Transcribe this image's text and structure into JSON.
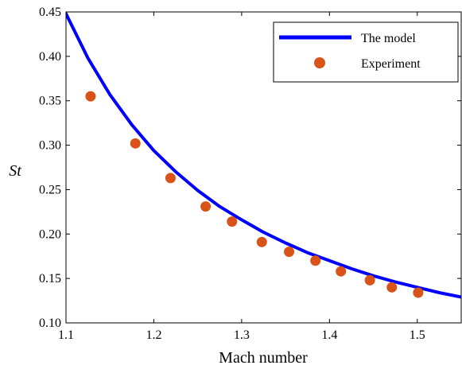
{
  "chart_data": {
    "type": "line",
    "title": "",
    "xlabel": "Mach number",
    "ylabel": "St",
    "xlim": [
      1.1,
      1.55
    ],
    "ylim": [
      0.1,
      0.45
    ],
    "x_ticks": [
      "1.1",
      "1.2",
      "1.3",
      "1.4",
      "1.5"
    ],
    "y_ticks": [
      "0.10",
      "0.15",
      "0.20",
      "0.25",
      "0.30",
      "0.35",
      "0.40",
      "0.45"
    ],
    "grid": false,
    "legend_position": "top-right",
    "series": [
      {
        "name": "The model",
        "kind": "line",
        "color": "#0000ff",
        "x": [
          1.1,
          1.125,
          1.15,
          1.175,
          1.2,
          1.225,
          1.25,
          1.275,
          1.3,
          1.325,
          1.35,
          1.375,
          1.4,
          1.425,
          1.45,
          1.475,
          1.5,
          1.525,
          1.55
        ],
        "y": [
          0.448,
          0.398,
          0.357,
          0.323,
          0.294,
          0.27,
          0.249,
          0.231,
          0.216,
          0.202,
          0.19,
          0.179,
          0.17,
          0.161,
          0.153,
          0.146,
          0.14,
          0.134,
          0.129
        ]
      },
      {
        "name": "Experiment",
        "kind": "scatter",
        "color": "#d95319",
        "x": [
          1.128,
          1.179,
          1.219,
          1.259,
          1.289,
          1.323,
          1.354,
          1.384,
          1.413,
          1.446,
          1.471,
          1.501
        ],
        "y": [
          0.355,
          0.302,
          0.263,
          0.231,
          0.214,
          0.191,
          0.18,
          0.17,
          0.158,
          0.148,
          0.14,
          0.134
        ]
      }
    ]
  }
}
